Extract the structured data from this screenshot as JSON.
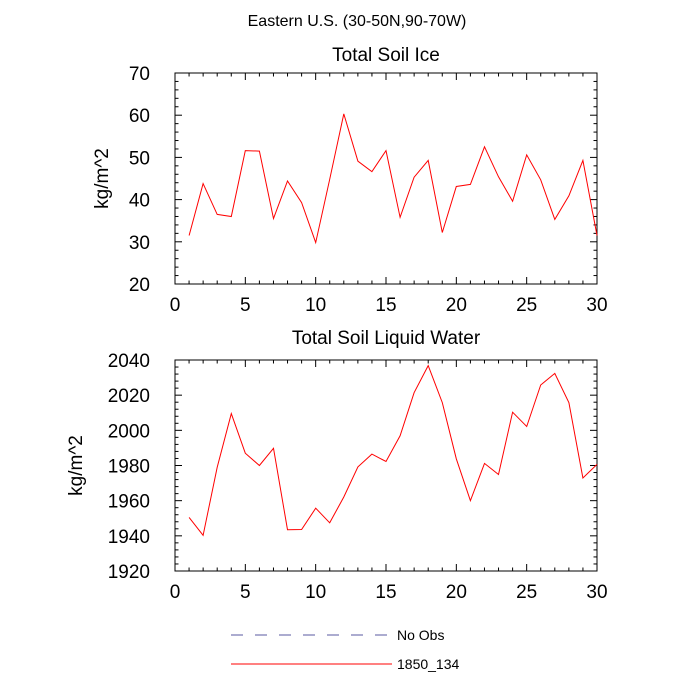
{
  "figure_title": "Eastern U.S. (30-50N,90-70W)",
  "legend": {
    "entries": [
      {
        "label": "No Obs",
        "color": "#5a5aa0",
        "style": "dashed"
      },
      {
        "label": "1850_134",
        "color": "#ff0000",
        "style": "solid"
      }
    ]
  },
  "chart_data": [
    {
      "type": "line",
      "title": "Total Soil Ice",
      "xlabel": "",
      "ylabel": "kg/m^2",
      "xlim": [
        0,
        30
      ],
      "ylim": [
        20,
        70
      ],
      "x_ticks": [
        0,
        5,
        10,
        15,
        20,
        25,
        30
      ],
      "y_ticks": [
        20,
        30,
        40,
        50,
        60,
        70
      ],
      "grid": false,
      "series": [
        {
          "name": "1850_134",
          "color": "#ff0000",
          "x": [
            1,
            2,
            3,
            4,
            5,
            6,
            7,
            8,
            9,
            10,
            11,
            12,
            13,
            14,
            15,
            16,
            17,
            18,
            19,
            20,
            21,
            22,
            23,
            24,
            25,
            26,
            27,
            28,
            29,
            30
          ],
          "values": [
            31.5,
            43.8,
            36.5,
            36.0,
            51.6,
            51.5,
            35.5,
            44.4,
            39.3,
            29.8,
            44.8,
            60.3,
            49.1,
            46.6,
            51.6,
            35.8,
            45.3,
            49.3,
            32.2,
            43.1,
            43.6,
            52.5,
            45.4,
            39.6,
            50.6,
            44.7,
            35.3,
            40.9,
            49.3,
            31.5
          ]
        }
      ]
    },
    {
      "type": "line",
      "title": "Total Soil Liquid Water",
      "xlabel": "",
      "ylabel": "kg/m^2",
      "xlim": [
        0,
        30
      ],
      "ylim": [
        1920,
        2040
      ],
      "x_ticks": [
        0,
        5,
        10,
        15,
        20,
        25,
        30
      ],
      "y_ticks": [
        1920,
        1940,
        1960,
        1980,
        2000,
        2020,
        2040
      ],
      "grid": false,
      "series": [
        {
          "name": "1850_134",
          "color": "#ff0000",
          "x": [
            1,
            2,
            3,
            4,
            5,
            6,
            7,
            8,
            9,
            10,
            11,
            12,
            13,
            14,
            15,
            16,
            17,
            18,
            19,
            20,
            21,
            22,
            23,
            24,
            25,
            26,
            27,
            28,
            29,
            30
          ],
          "values": [
            1950.5,
            1940.3,
            1979.0,
            2009.5,
            1987.0,
            1980.0,
            1989.8,
            1943.5,
            1943.6,
            1955.7,
            1947.4,
            1962.1,
            1979.2,
            1986.5,
            1982.3,
            1996.9,
            2021.4,
            2036.8,
            2015.8,
            1983.8,
            1960.0,
            1981.2,
            1974.9,
            2010.3,
            2002.2,
            2025.8,
            2032.4,
            2015.7,
            1972.9,
            1980.6
          ]
        }
      ]
    }
  ]
}
